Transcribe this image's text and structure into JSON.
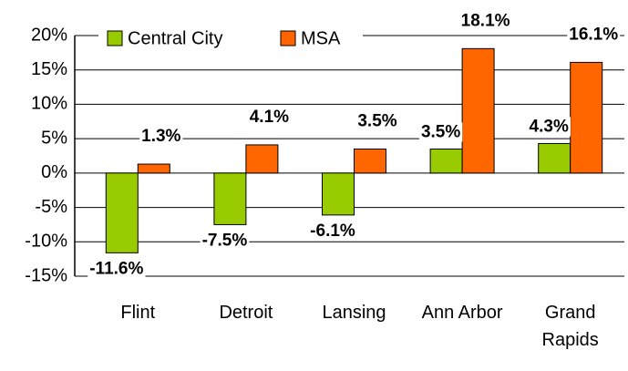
{
  "chart_data": {
    "type": "bar",
    "categories": [
      "Flint",
      "Detroit",
      "Lansing",
      "Ann Arbor",
      "Grand Rapids"
    ],
    "series": [
      {
        "name": "Central City",
        "color": "#99cc00",
        "values": [
          -11.6,
          -7.5,
          -6.1,
          3.5,
          4.3
        ],
        "value_labels": [
          "-11.6%",
          "-7.5%",
          "-6.1%",
          "3.5%",
          "4.3%"
        ]
      },
      {
        "name": "MSA",
        "color": "#ff6600",
        "values": [
          1.3,
          4.1,
          3.5,
          18.1,
          16.1
        ],
        "value_labels": [
          "1.3%",
          "4.1%",
          "3.5%",
          "18.1%",
          "16.1%"
        ]
      }
    ],
    "ylim": [
      -15,
      20
    ],
    "yticks": [
      {
        "value": -15,
        "label": "-15%"
      },
      {
        "value": -10,
        "label": "-10%"
      },
      {
        "value": -5,
        "label": "-5%"
      },
      {
        "value": 0,
        "label": "0%"
      },
      {
        "value": 5,
        "label": "5%"
      },
      {
        "value": 10,
        "label": "10%"
      },
      {
        "value": 15,
        "label": "15%"
      },
      {
        "value": 20,
        "label": "20%"
      }
    ],
    "grid": true,
    "legend": "top-left"
  }
}
